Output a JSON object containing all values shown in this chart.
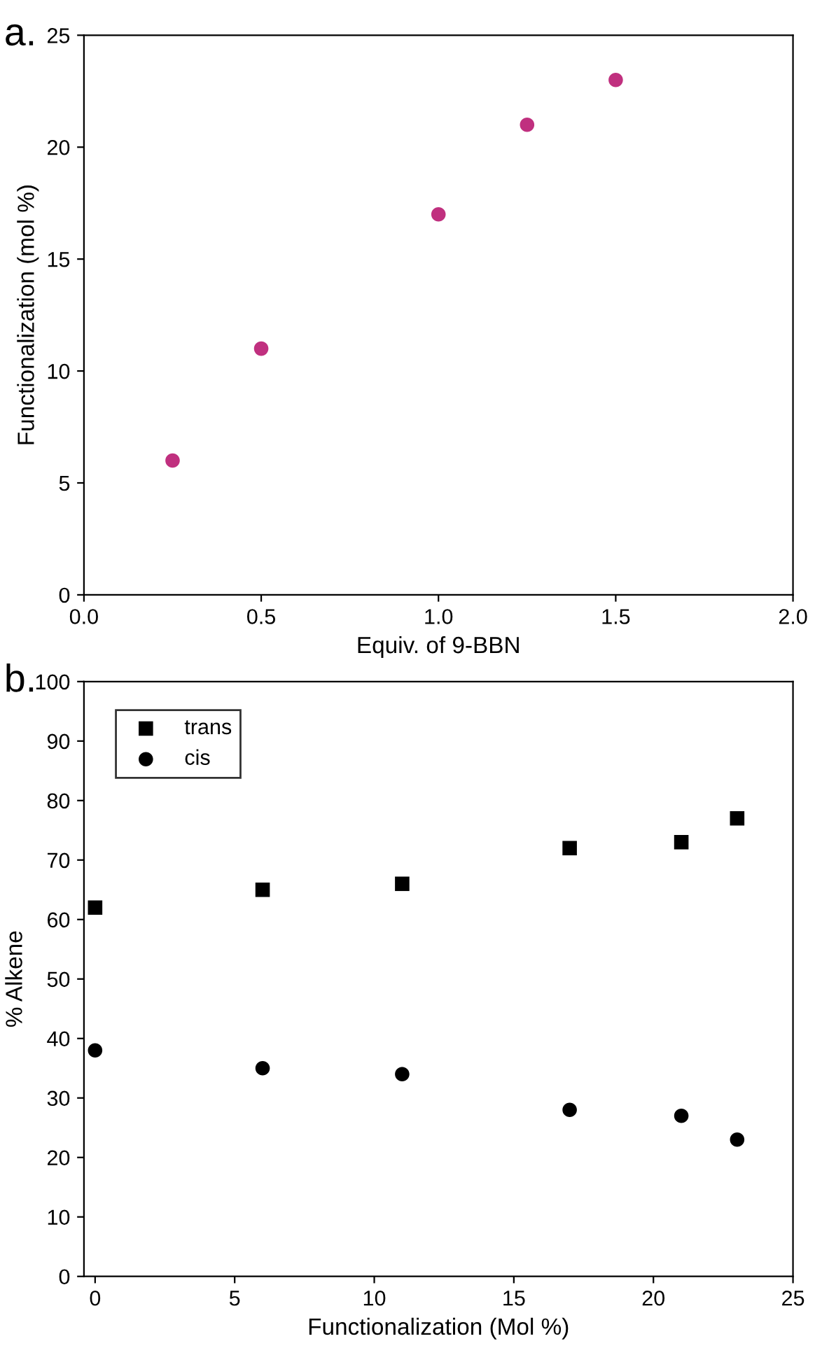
{
  "chart_data": [
    {
      "type": "scatter",
      "annotations": [
        "a."
      ],
      "xlabel": "Equiv. of 9-BBN",
      "ylabel": "Functionalization (mol %)",
      "xlim": [
        0,
        2
      ],
      "xticks": [
        {
          "value": 0,
          "label": "0.0"
        },
        {
          "value": 0.5,
          "label": "0.5"
        },
        {
          "value": 1,
          "label": "1.0"
        },
        {
          "value": 1.5,
          "label": "1.5"
        },
        {
          "value": 2,
          "label": "2.0"
        }
      ],
      "ylim": [
        0,
        25
      ],
      "yticks": [
        0,
        5,
        10,
        15,
        20,
        25
      ],
      "marker": "circle",
      "legend": false,
      "grid": false,
      "x": [
        0.25,
        0.5,
        1.0,
        1.25,
        1.5
      ],
      "series": [
        {
          "color": "#c0307f",
          "values": [
            6,
            11,
            17,
            21,
            23
          ]
        }
      ]
    },
    {
      "type": "scatter",
      "annotations": [
        "b."
      ],
      "xlabel": "Functionalization (Mol %)",
      "ylabel": "% Alkene",
      "xlim": [
        -0.4,
        25
      ],
      "xticks": [
        0,
        5,
        10,
        15,
        20,
        25
      ],
      "ylim": [
        0,
        100
      ],
      "yticks": [
        0,
        10,
        20,
        30,
        40,
        50,
        60,
        70,
        80,
        90,
        100
      ],
      "legend": "top left",
      "grid": false,
      "x": [
        0,
        6,
        11,
        17,
        21,
        23
      ],
      "series": [
        {
          "name": "trans",
          "color": "#000000",
          "marker": "square",
          "values": [
            62,
            65,
            66,
            72,
            73,
            77
          ]
        },
        {
          "name": "cis",
          "color": "#000000",
          "marker": "circle",
          "values": [
            38,
            35,
            34,
            28,
            27,
            23
          ]
        }
      ]
    }
  ]
}
